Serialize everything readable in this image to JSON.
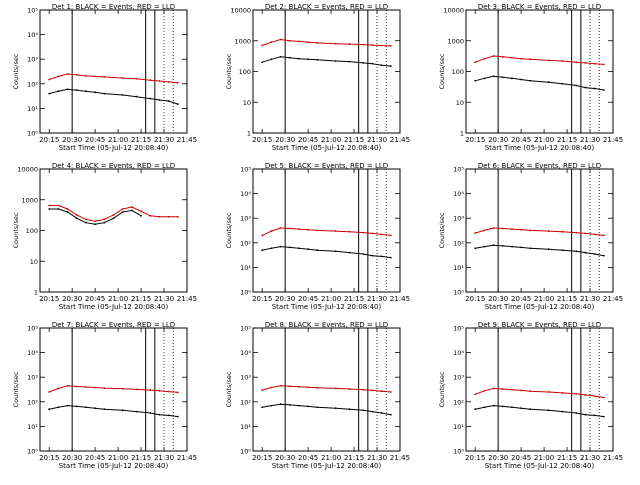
{
  "figure": {
    "xlabel": "Start Time (05-Jul-12 20:08:40)",
    "ylabel": "Counts/sec",
    "xticks": [
      "20:15",
      "20:30",
      "20:45",
      "21:00",
      "21:15",
      "21:30",
      "21:45"
    ],
    "colors": {
      "events": "#000000",
      "lld": "#cc0000",
      "frame": "#000000"
    }
  },
  "chart_data": [
    {
      "type": "line",
      "title": "Det 1: BLACK = Events, RED = LLD",
      "xlim": [
        20.15,
        21.75
      ],
      "ylim": [
        1,
        100000
      ],
      "ylog": true,
      "yticks": [
        "10⁰",
        "10¹",
        "10²",
        "10³",
        "10⁴",
        "10⁵"
      ],
      "ytick_values": [
        1,
        10,
        100,
        1000,
        10000,
        100000
      ],
      "vlines_solid": [
        20.5,
        21.3,
        21.4
      ],
      "vlines_dotted": [
        21.5,
        21.6
      ],
      "series": [
        {
          "name": "Events",
          "x": [
            20.25,
            20.35,
            20.45,
            20.55,
            20.65,
            20.75,
            20.85,
            21.05,
            21.2,
            21.35,
            21.45,
            21.55,
            21.65
          ],
          "values": [
            40,
            50,
            60,
            55,
            50,
            45,
            40,
            35,
            30,
            25,
            22,
            20,
            15
          ]
        },
        {
          "name": "LLD",
          "x": [
            20.25,
            20.35,
            20.45,
            20.55,
            20.65,
            20.75,
            20.85,
            21.05,
            21.2,
            21.35,
            21.45,
            21.55,
            21.65
          ],
          "values": [
            150,
            200,
            250,
            230,
            210,
            200,
            190,
            170,
            160,
            140,
            130,
            120,
            110
          ]
        }
      ]
    },
    {
      "type": "line",
      "title": "Det 2: BLACK = Events, RED = LLD",
      "xlim": [
        20.15,
        21.75
      ],
      "ylim": [
        1,
        10000
      ],
      "ylog": true,
      "yticks": [
        "1",
        "10",
        "100",
        "1000",
        "10000"
      ],
      "ytick_values": [
        1,
        10,
        100,
        1000,
        10000
      ],
      "vlines_solid": [
        20.5,
        21.3,
        21.4
      ],
      "vlines_dotted": [
        21.5,
        21.6
      ],
      "series": [
        {
          "name": "Events",
          "x": [
            20.25,
            20.35,
            20.45,
            20.55,
            20.65,
            20.75,
            20.85,
            21.05,
            21.2,
            21.35,
            21.45,
            21.55,
            21.65
          ],
          "values": [
            200,
            250,
            300,
            280,
            260,
            250,
            240,
            220,
            210,
            190,
            180,
            160,
            150
          ]
        },
        {
          "name": "LLD",
          "x": [
            20.25,
            20.35,
            20.45,
            20.55,
            20.65,
            20.75,
            20.85,
            21.05,
            21.2,
            21.35,
            21.45,
            21.55,
            21.65
          ],
          "values": [
            700,
            900,
            1100,
            1000,
            950,
            900,
            850,
            800,
            780,
            750,
            720,
            700,
            680
          ]
        }
      ]
    },
    {
      "type": "line",
      "title": "Det 3: BLACK = Events, RED = LLD",
      "xlim": [
        20.15,
        21.75
      ],
      "ylim": [
        1,
        10000
      ],
      "ylog": true,
      "yticks": [
        "1",
        "10",
        "100",
        "1000",
        "10000"
      ],
      "ytick_values": [
        1,
        10,
        100,
        1000,
        10000
      ],
      "vlines_solid": [
        20.5,
        21.3,
        21.4
      ],
      "vlines_dotted": [
        21.5,
        21.6
      ],
      "series": [
        {
          "name": "Events",
          "x": [
            20.25,
            20.35,
            20.45,
            20.55,
            20.65,
            20.75,
            20.85,
            21.05,
            21.2,
            21.35,
            21.45,
            21.55,
            21.65
          ],
          "values": [
            50,
            60,
            70,
            65,
            60,
            55,
            50,
            45,
            40,
            35,
            30,
            28,
            25
          ]
        },
        {
          "name": "LLD",
          "x": [
            20.25,
            20.35,
            20.45,
            20.55,
            20.65,
            20.75,
            20.85,
            21.05,
            21.2,
            21.35,
            21.45,
            21.55,
            21.65
          ],
          "values": [
            200,
            260,
            320,
            300,
            280,
            260,
            250,
            230,
            220,
            200,
            190,
            180,
            170
          ]
        }
      ]
    },
    {
      "type": "line",
      "title": "Det 4: BLACK = Events, RED = LLD",
      "xlim": [
        20.15,
        21.75
      ],
      "ylim": [
        1,
        10000
      ],
      "ylog": true,
      "yticks": [
        "1",
        "10",
        "100",
        "1000",
        "10000"
      ],
      "ytick_values": [
        1,
        10,
        100,
        1000,
        10000
      ],
      "vlines_solid": [],
      "vlines_dotted": [],
      "series": [
        {
          "name": "Events",
          "x": [
            20.25,
            20.35,
            20.45,
            20.55,
            20.65,
            20.75,
            20.85,
            20.95,
            21.05,
            21.15,
            21.25
          ],
          "values": [
            500,
            500,
            400,
            250,
            180,
            160,
            180,
            250,
            400,
            450,
            300
          ]
        },
        {
          "name": "LLD",
          "x": [
            20.25,
            20.35,
            20.45,
            20.55,
            20.65,
            20.75,
            20.85,
            20.95,
            21.05,
            21.15,
            21.25,
            21.35,
            21.45,
            21.55,
            21.65
          ],
          "values": [
            650,
            650,
            500,
            320,
            230,
            200,
            230,
            320,
            500,
            580,
            420,
            300,
            280,
            280,
            280
          ]
        }
      ]
    },
    {
      "type": "line",
      "title": "Det 5: BLACK = Events, RED = LLD",
      "xlim": [
        20.15,
        21.75
      ],
      "ylim": [
        1,
        100000
      ],
      "ylog": true,
      "yticks": [
        "10⁰",
        "10¹",
        "10²",
        "10³",
        "10⁴",
        "10⁵"
      ],
      "ytick_values": [
        1,
        10,
        100,
        1000,
        10000,
        100000
      ],
      "vlines_solid": [
        20.5,
        21.3,
        21.4
      ],
      "vlines_dotted": [
        21.5,
        21.6
      ],
      "series": [
        {
          "name": "Events",
          "x": [
            20.25,
            20.35,
            20.45,
            20.55,
            20.65,
            20.75,
            20.85,
            21.05,
            21.2,
            21.35,
            21.45,
            21.55,
            21.65
          ],
          "values": [
            50,
            60,
            70,
            65,
            60,
            55,
            50,
            45,
            40,
            35,
            30,
            28,
            25
          ]
        },
        {
          "name": "LLD",
          "x": [
            20.25,
            20.35,
            20.45,
            20.55,
            20.65,
            20.75,
            20.85,
            21.05,
            21.2,
            21.35,
            21.45,
            21.55,
            21.65
          ],
          "values": [
            200,
            300,
            400,
            380,
            360,
            340,
            320,
            300,
            280,
            260,
            240,
            220,
            200
          ]
        }
      ]
    },
    {
      "type": "line",
      "title": "Det 6: BLACK = Events, RED = LLD",
      "xlim": [
        20.15,
        21.75
      ],
      "ylim": [
        1,
        100000
      ],
      "ylog": true,
      "yticks": [
        "10⁰",
        "10¹",
        "10²",
        "10³",
        "10⁴",
        "10⁵"
      ],
      "ytick_values": [
        1,
        10,
        100,
        1000,
        10000,
        100000
      ],
      "vlines_solid": [
        20.5,
        21.3,
        21.4
      ],
      "vlines_dotted": [
        21.5,
        21.6
      ],
      "series": [
        {
          "name": "Events",
          "x": [
            20.25,
            20.35,
            20.45,
            20.55,
            20.65,
            20.75,
            20.85,
            21.05,
            21.2,
            21.35,
            21.45,
            21.55,
            21.65
          ],
          "values": [
            60,
            70,
            80,
            75,
            70,
            65,
            60,
            55,
            50,
            45,
            40,
            35,
            30
          ]
        },
        {
          "name": "LLD",
          "x": [
            20.25,
            20.35,
            20.45,
            20.55,
            20.65,
            20.75,
            20.85,
            21.05,
            21.2,
            21.35,
            21.45,
            21.55,
            21.65
          ],
          "values": [
            250,
            320,
            400,
            380,
            360,
            340,
            320,
            300,
            280,
            260,
            240,
            220,
            200
          ]
        }
      ]
    },
    {
      "type": "line",
      "title": "Det 7: BLACK = Events, RED = LLD",
      "xlim": [
        20.15,
        21.75
      ],
      "ylim": [
        1,
        100000
      ],
      "ylog": true,
      "yticks": [
        "10⁰",
        "10¹",
        "10²",
        "10³",
        "10⁴",
        "10⁵"
      ],
      "ytick_values": [
        1,
        10,
        100,
        1000,
        10000,
        100000
      ],
      "vlines_solid": [
        20.5,
        21.3,
        21.4
      ],
      "vlines_dotted": [
        21.5,
        21.6
      ],
      "series": [
        {
          "name": "Events",
          "x": [
            20.25,
            20.35,
            20.45,
            20.55,
            20.65,
            20.75,
            20.85,
            21.05,
            21.2,
            21.35,
            21.45,
            21.55,
            21.65
          ],
          "values": [
            50,
            60,
            70,
            65,
            60,
            55,
            50,
            45,
            40,
            35,
            30,
            28,
            25
          ]
        },
        {
          "name": "LLD",
          "x": [
            20.25,
            20.35,
            20.45,
            20.55,
            20.65,
            20.75,
            20.85,
            21.05,
            21.2,
            21.35,
            21.45,
            21.55,
            21.65
          ],
          "values": [
            250,
            350,
            450,
            420,
            400,
            380,
            360,
            340,
            320,
            300,
            280,
            260,
            240
          ]
        }
      ]
    },
    {
      "type": "line",
      "title": "Det 8: BLACK = Events, RED = LLD",
      "xlim": [
        20.15,
        21.75
      ],
      "ylim": [
        1,
        100000
      ],
      "ylog": true,
      "yticks": [
        "10⁰",
        "10¹",
        "10²",
        "10³",
        "10⁴",
        "10⁵"
      ],
      "ytick_values": [
        1,
        10,
        100,
        1000,
        10000,
        100000
      ],
      "vlines_solid": [
        20.5,
        21.3,
        21.4
      ],
      "vlines_dotted": [
        21.5,
        21.6
      ],
      "series": [
        {
          "name": "Events",
          "x": [
            20.25,
            20.35,
            20.45,
            20.55,
            20.65,
            20.75,
            20.85,
            21.05,
            21.2,
            21.35,
            21.45,
            21.55,
            21.65
          ],
          "values": [
            60,
            70,
            80,
            75,
            70,
            65,
            60,
            55,
            50,
            45,
            40,
            35,
            30
          ]
        },
        {
          "name": "LLD",
          "x": [
            20.25,
            20.35,
            20.45,
            20.55,
            20.65,
            20.75,
            20.85,
            21.05,
            21.2,
            21.35,
            21.45,
            21.55,
            21.65
          ],
          "values": [
            300,
            380,
            450,
            430,
            410,
            390,
            370,
            350,
            330,
            310,
            290,
            270,
            250
          ]
        }
      ]
    },
    {
      "type": "line",
      "title": "Det 9: BLACK = Events, RED = LLD",
      "xlim": [
        20.15,
        21.75
      ],
      "ylim": [
        1,
        100000
      ],
      "ylog": true,
      "yticks": [
        "10⁰",
        "10¹",
        "10²",
        "10³",
        "10⁴",
        "10⁵"
      ],
      "ytick_values": [
        1,
        10,
        100,
        1000,
        10000,
        100000
      ],
      "vlines_solid": [
        20.5,
        21.3,
        21.4
      ],
      "vlines_dotted": [
        21.5,
        21.6
      ],
      "series": [
        {
          "name": "Events",
          "x": [
            20.25,
            20.35,
            20.45,
            20.55,
            20.65,
            20.75,
            20.85,
            21.05,
            21.2,
            21.35,
            21.45,
            21.55,
            21.65
          ],
          "values": [
            50,
            60,
            70,
            65,
            60,
            55,
            50,
            45,
            40,
            35,
            30,
            28,
            25
          ]
        },
        {
          "name": "LLD",
          "x": [
            20.25,
            20.35,
            20.45,
            20.55,
            20.65,
            20.75,
            20.85,
            21.05,
            21.2,
            21.35,
            21.45,
            21.55,
            21.65
          ],
          "values": [
            200,
            280,
            350,
            330,
            310,
            290,
            270,
            250,
            230,
            210,
            190,
            170,
            150
          ]
        }
      ]
    }
  ]
}
